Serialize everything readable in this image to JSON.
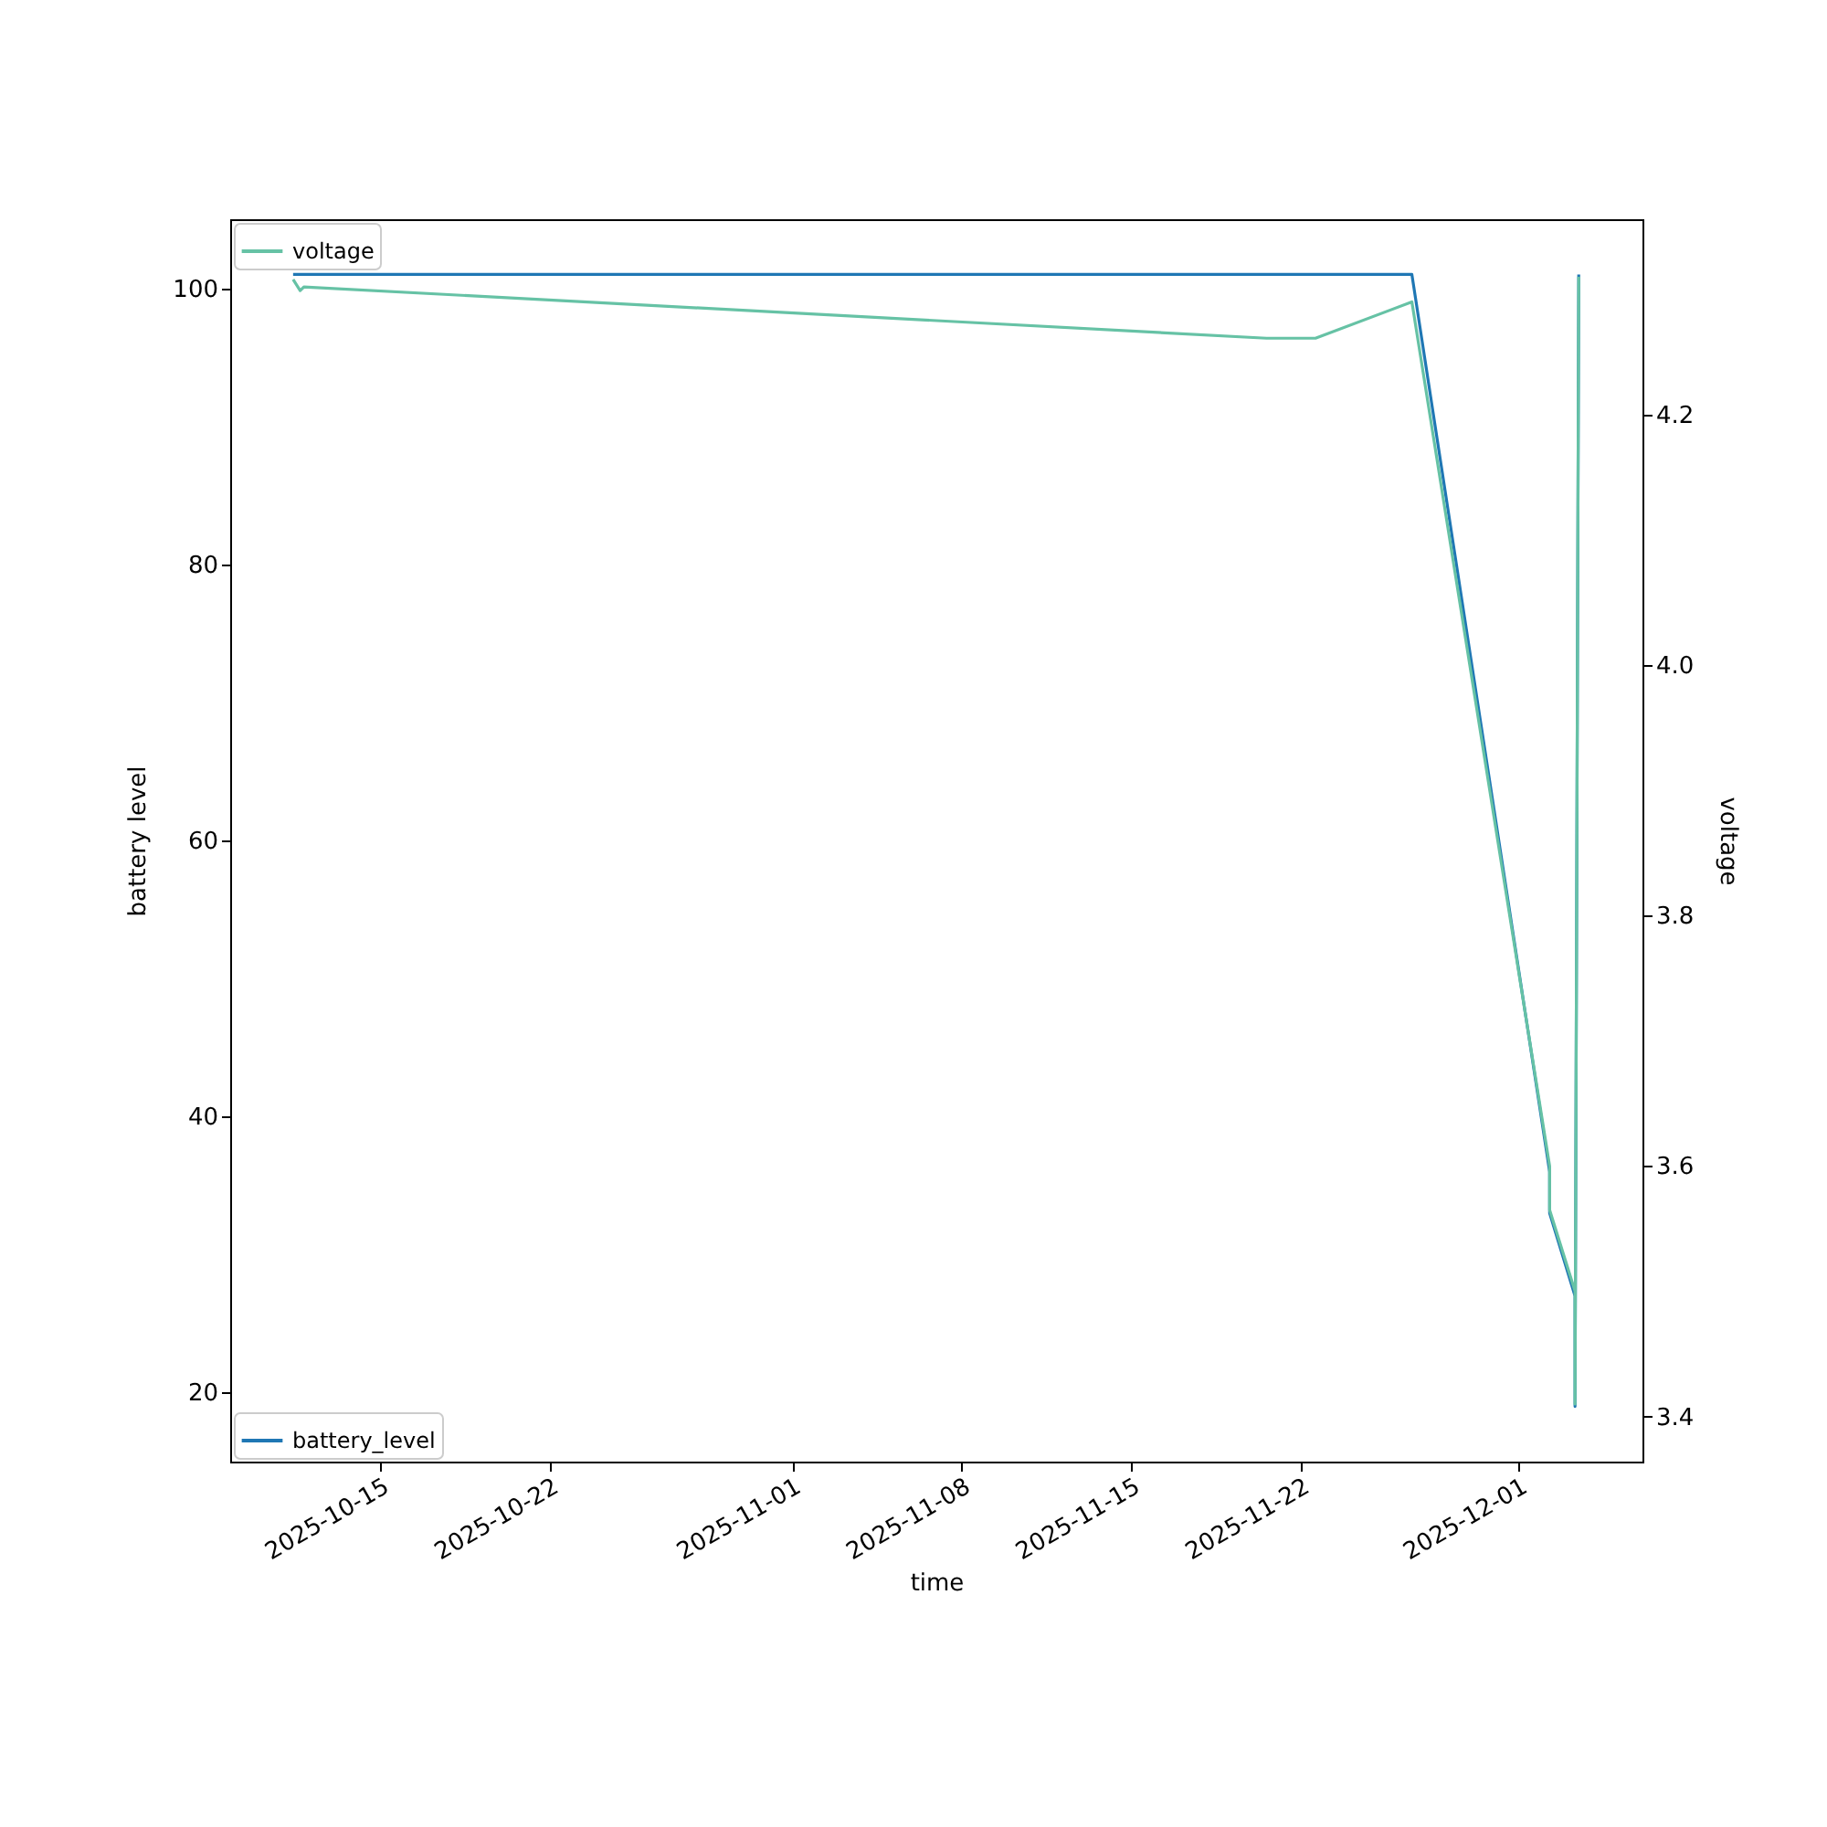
{
  "chart_data": {
    "type": "line",
    "xlabel": "time",
    "ylabel": "battery level",
    "y2label": "voltage",
    "xlim": [
      "2025-10-08T19:00",
      "2025-12-06T02:30"
    ],
    "xticks": [
      "2025-10-15",
      "2025-10-22",
      "2025-11-01",
      "2025-11-08",
      "2025-11-15",
      "2025-11-22",
      "2025-12-01"
    ],
    "ylim": [
      15,
      105
    ],
    "yticks": [
      20,
      40,
      60,
      80,
      100
    ],
    "y2lim": [
      3.364,
      4.356
    ],
    "y2ticks": [
      3.4,
      3.6,
      3.8,
      {
        "value": 4.0,
        "label": "4.0"
      },
      4.2
    ],
    "grid": false,
    "legend": "left",
    "series": [
      {
        "name": "battery_level",
        "color": "#1f77b4",
        "axis": "y",
        "x": [
          "2025-10-11T09:20",
          "2025-11-26T14:00",
          "2025-12-02T06:30",
          "2025-12-02T06:30",
          "2025-12-03T07:40",
          "2025-12-03T07:40",
          "2025-12-03T11:20"
        ],
        "values": [
          101,
          101,
          36,
          33,
          27,
          19,
          101
        ]
      },
      {
        "name": "voltage",
        "color": "#66c2a5",
        "axis": "y2",
        "x": [
          "2025-10-11T09:20",
          "2025-10-11T16:20",
          "2025-10-11T20:00",
          "2025-11-20T14:00",
          "2025-11-22T14:30",
          "2025-11-26T14:00",
          "2025-12-02T06:30",
          "2025-12-02T06:30",
          "2025-12-03T07:40",
          "2025-12-03T07:40",
          "2025-12-03T11:20"
        ],
        "values": [
          4.308,
          4.299,
          4.302,
          4.261,
          4.261,
          4.29,
          3.6,
          3.565,
          3.5,
          3.41,
          4.31
        ]
      }
    ]
  }
}
